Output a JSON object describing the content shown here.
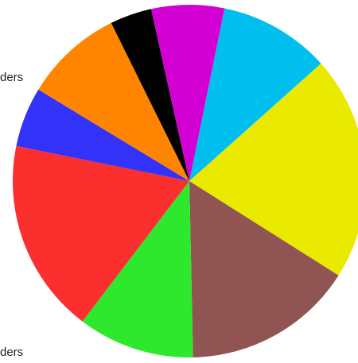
{
  "chart_data": {
    "type": "pie",
    "title": "",
    "start_angle_deg": -78.5,
    "slices": [
      {
        "value": 10.4,
        "color": "#00BFEF"
      },
      {
        "value": 21.0,
        "color": "#EAEA00"
      },
      {
        "value": 16.0,
        "color": "#905552"
      },
      {
        "value": 10.9,
        "color": "#2EE82E"
      },
      {
        "value": 18.2,
        "color": "#FC2F2F"
      },
      {
        "value": 5.6,
        "color": "#3232F8"
      },
      {
        "value": 9.2,
        "color": "#FF8500"
      },
      {
        "value": 3.9,
        "color": "#000000"
      },
      {
        "value": 6.8,
        "color": "#D300D3"
      }
    ],
    "visible_labels": [
      "ders",
      "ders"
    ]
  }
}
